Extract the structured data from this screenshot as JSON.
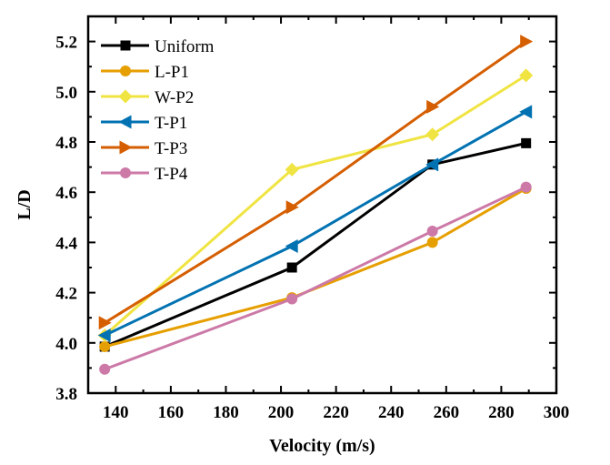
{
  "chart_data": {
    "type": "line",
    "title": "",
    "xlabel": "Velocity (m/s)",
    "ylabel": "L/D",
    "xlim": [
      130,
      300
    ],
    "ylim": [
      3.8,
      5.3
    ],
    "xticks": [
      140,
      160,
      180,
      200,
      220,
      240,
      260,
      280,
      300
    ],
    "yticks": [
      3.8,
      4.0,
      4.2,
      4.4,
      4.6,
      4.8,
      5.0,
      5.2
    ],
    "xtick_labels": [
      "140",
      "160",
      "180",
      "200",
      "220",
      "240",
      "260",
      "280",
      "300"
    ],
    "ytick_labels": [
      "3.8",
      "4.0",
      "4.2",
      "4.4",
      "4.6",
      "4.8",
      "5.0",
      "5.2"
    ],
    "grid": false,
    "legend_position": "top-left",
    "x": [
      136,
      204,
      255,
      289
    ],
    "series": [
      {
        "name": "Uniform",
        "color": "#000000",
        "marker": "square",
        "values": [
          3.985,
          4.3,
          4.71,
          4.795
        ]
      },
      {
        "name": "L-P1",
        "color": "#E69F00",
        "marker": "circle",
        "values": [
          3.985,
          4.18,
          4.4,
          4.615
        ]
      },
      {
        "name": "W-P2",
        "color": "#F0E442",
        "marker": "diamond",
        "values": [
          4.03,
          4.69,
          4.83,
          5.065
        ]
      },
      {
        "name": "T-P1",
        "color": "#0072B2",
        "marker": "triangle-left",
        "values": [
          4.03,
          4.385,
          4.71,
          4.92
        ]
      },
      {
        "name": "T-P3",
        "color": "#D55E00",
        "marker": "triangle-right",
        "values": [
          4.08,
          4.54,
          4.94,
          5.2
        ]
      },
      {
        "name": "T-P4",
        "color": "#CC79A7",
        "marker": "circle",
        "values": [
          3.895,
          4.175,
          4.445,
          4.62
        ]
      }
    ]
  }
}
